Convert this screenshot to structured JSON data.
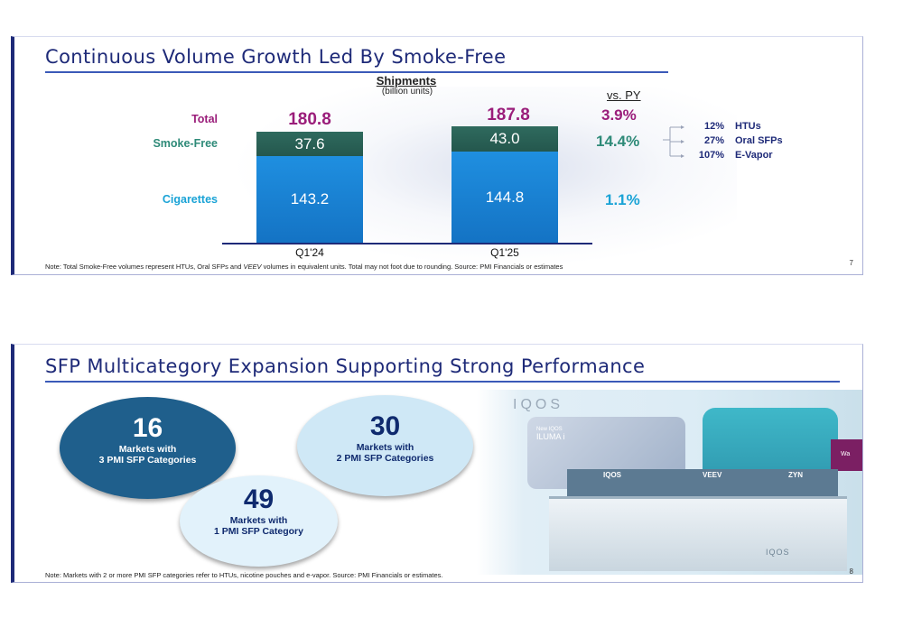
{
  "slide1": {
    "title": "Continuous Volume Growth Led By Smoke-Free",
    "shipments_label": "Shipments",
    "shipments_unit": "(billion units)",
    "vs_py_label": "vs. PY",
    "row_labels": {
      "total": "Total",
      "smoke_free": "Smoke-Free",
      "cigarettes": "Cigarettes"
    },
    "periods": [
      {
        "label": "Q1'24",
        "total": "180.8",
        "smoke_free": "37.6",
        "cigarettes": "143.2"
      },
      {
        "label": "Q1'25",
        "total": "187.8",
        "smoke_free": "43.0",
        "cigarettes": "144.8"
      }
    ],
    "vs_py": {
      "total": "3.9%",
      "smoke_free": "14.4%",
      "cigarettes": "1.1%"
    },
    "breakdown": [
      {
        "value": "12%",
        "label": "HTUs"
      },
      {
        "value": "27%",
        "label": "Oral SFPs"
      },
      {
        "value": "107%",
        "label": "E-Vapor"
      }
    ],
    "note_before": "Note: Total Smoke-Free volumes represent HTUs, Oral SFPs and ",
    "note_italic": "VEEV",
    "note_after": " volumes in equivalent units. Total may not foot due to rounding. Source: PMI Financials or estimates",
    "page_number": "7"
  },
  "chart_data": {
    "type": "bar",
    "stacked": true,
    "title": "Shipments",
    "ylabel": "(billion units)",
    "categories": [
      "Q1'24",
      "Q1'25"
    ],
    "series": [
      {
        "name": "Cigarettes",
        "values": [
          143.2,
          144.8
        ]
      },
      {
        "name": "Smoke-Free",
        "values": [
          37.6,
          43.0
        ]
      }
    ],
    "totals": [
      180.8,
      187.8
    ],
    "colors": {
      "cigarettes": "#1a86d6",
      "smoke_free": "#2a6358",
      "total": "#9a1d7a"
    }
  },
  "slide2": {
    "title": "SFP Multicategory Expansion Supporting Strong Performance",
    "circles": [
      {
        "number": "16",
        "line1": "Markets with",
        "line2": "3 PMI SFP Categories"
      },
      {
        "number": "30",
        "line1": "Markets with",
        "line2": "2 PMI SFP Categories"
      },
      {
        "number": "49",
        "line1": "Markets with",
        "line2": "1 PMI SFP Category"
      }
    ],
    "store": {
      "logo": "IQOS",
      "panel_text_1": "New IQOS",
      "panel_text_2": "ILUMA i",
      "counter_brands": [
        "IQOS",
        "VEEV",
        "ZYN"
      ],
      "cabinet_logo": "IQOS",
      "screen_text": "Wa"
    },
    "note": "Note: Markets with 2 or more PMI SFP categories refer to HTUs, nicotine pouches and e-vapor. Source: PMI Financials or estimates.",
    "page_number": "8"
  }
}
